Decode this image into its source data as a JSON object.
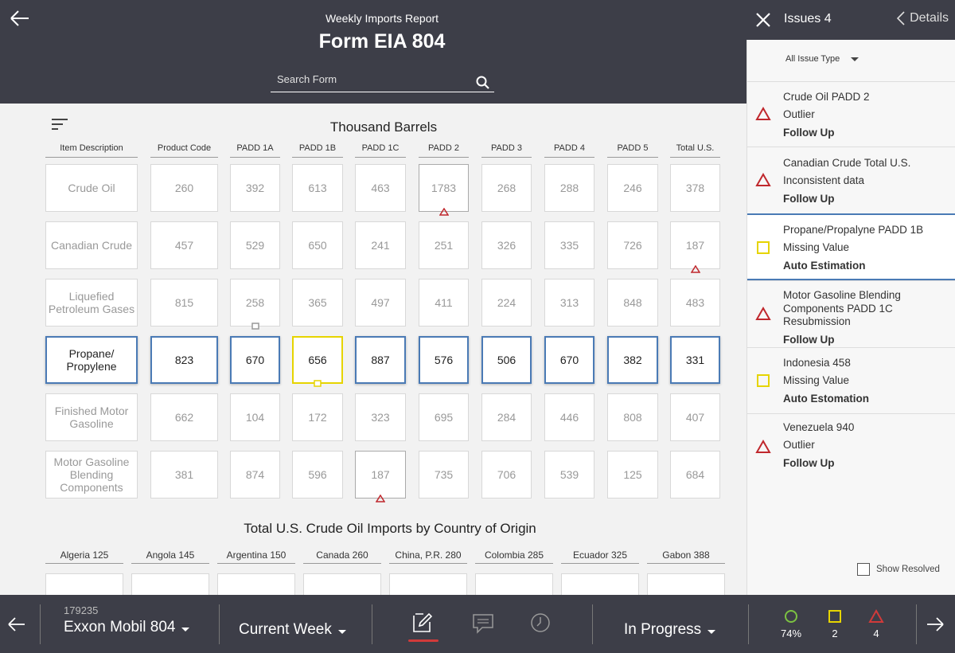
{
  "header": {
    "subtitle": "Weekly Imports Report",
    "title": "Form EIA 804",
    "search_placeholder": "Search Form"
  },
  "table": {
    "title": "Thousand Barrels",
    "columns": [
      "Item Description",
      "Product Code",
      "PADD 1A",
      "PADD 1B",
      "PADD 1C",
      "PADD 2",
      "PADD 3",
      "PADD 4",
      "PADD 5",
      "Total U.S."
    ],
    "rows": [
      {
        "label": "Crude Oil",
        "values": [
          "260",
          "392",
          "613",
          "463",
          "1783",
          "268",
          "288",
          "246",
          "378"
        ]
      },
      {
        "label": "Canadian Crude",
        "values": [
          "457",
          "529",
          "650",
          "241",
          "251",
          "326",
          "335",
          "726",
          "187"
        ]
      },
      {
        "label": "Liquefied Petroleum Gases",
        "values": [
          "815",
          "258",
          "365",
          "497",
          "411",
          "224",
          "313",
          "848",
          "483"
        ]
      },
      {
        "label": "Propane/ Propylene",
        "values": [
          "823",
          "670",
          "656",
          "887",
          "576",
          "506",
          "670",
          "382",
          "331"
        ]
      },
      {
        "label": "Finished Motor Gasoline",
        "values": [
          "662",
          "104",
          "172",
          "323",
          "695",
          "284",
          "446",
          "808",
          "407"
        ]
      },
      {
        "label": "Motor Gasoline Blending Components",
        "values": [
          "381",
          "874",
          "596",
          "187",
          "735",
          "706",
          "539",
          "125",
          "684"
        ]
      }
    ]
  },
  "countries": {
    "title": "Total U.S. Crude Oil Imports by Country of Origin",
    "items": [
      "Algeria 125",
      "Angola 145",
      "Argentina 150",
      "Canada 260",
      "China, P.R. 280",
      "Colombia 285",
      "Ecuador 325",
      "Gabon 388"
    ]
  },
  "issues": {
    "title": "Issues 4",
    "details_label": "Details",
    "filter_label": "All Issue Type",
    "show_resolved_label": "Show Resolved",
    "items": [
      {
        "title": "Crude Oil PADD 2",
        "type": "Outlier",
        "action": "Follow Up",
        "icon": "warning-triangle-icon"
      },
      {
        "title": "Canadian Crude Total U.S.",
        "type": "Inconsistent data",
        "action": "Follow Up",
        "icon": "warning-triangle-icon"
      },
      {
        "title": "Propane/Propalyne PADD 1B",
        "type": "Missing Value",
        "action": "Auto Estimation",
        "icon": "missing-square-icon"
      },
      {
        "title": "Motor Gasoline Blending Components PADD 1C",
        "type": "Resubmission",
        "action": "Follow Up",
        "icon": "warning-triangle-icon"
      },
      {
        "title": "Indonesia 458",
        "type": "Missing Value",
        "action": "Auto Estomation",
        "icon": "missing-square-icon"
      },
      {
        "title": "Venezuela 940",
        "type": "Outlier",
        "action": "Follow Up",
        "icon": "warning-triangle-icon"
      }
    ]
  },
  "bottom_bar": {
    "company_id": "179235",
    "company_name": "Exxon Mobil 804",
    "period": "Current Week",
    "status": "In Progress",
    "stats": {
      "complete": "74%",
      "missing": "2",
      "warnings": "4"
    }
  },
  "colors": {
    "header_bg": "#3d3e48",
    "highlight_blue": "#4a7ab5",
    "warning_red": "#c0282d",
    "missing_yellow": "#e6d400",
    "ok_green": "#7cc242"
  }
}
